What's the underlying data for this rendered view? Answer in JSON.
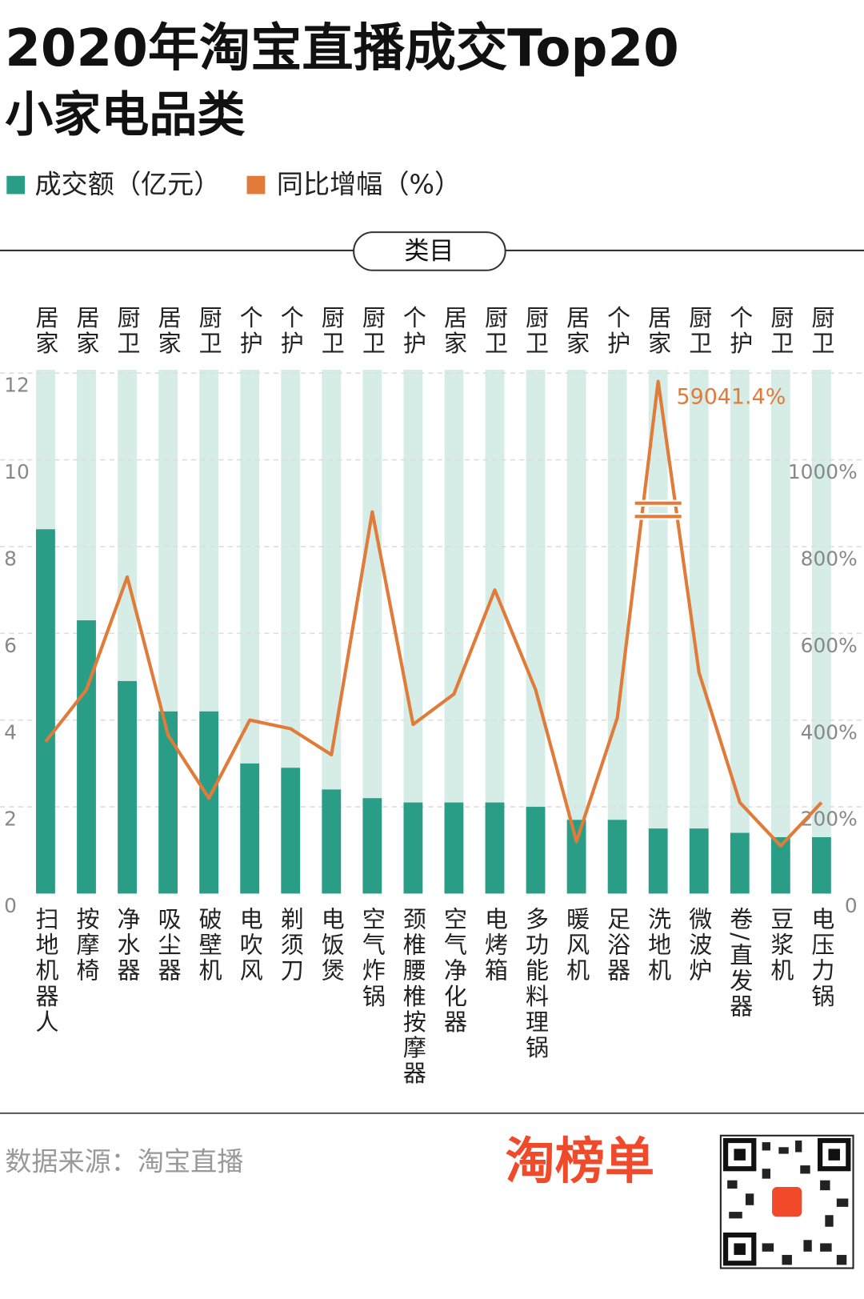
{
  "chart_data": {
    "type": "bar",
    "title": "2020年淘宝直播成交Top20",
    "subtitle": "小家电品类",
    "header": "类目",
    "groups": [
      "居家",
      "居家",
      "厨卫",
      "居家",
      "厨卫",
      "个护",
      "个护",
      "厨卫",
      "厨卫",
      "个护",
      "居家",
      "厨卫",
      "厨卫",
      "居家",
      "个护",
      "居家",
      "厨卫",
      "个护",
      "厨卫",
      "厨卫"
    ],
    "categories": [
      "扫地机器人",
      "按摩椅",
      "净水器",
      "吸尘器",
      "破壁机",
      "电吹风",
      "剃须刀",
      "电饭煲",
      "空气炸锅",
      "颈椎腰椎按摩器",
      "空气净化器",
      "电烤箱",
      "多功能料理锅",
      "暖风机",
      "足浴器",
      "洗地机",
      "微波炉",
      "卷/直发器",
      "豆浆机",
      "电压力锅"
    ],
    "series": [
      {
        "name": "成交额（亿元）",
        "color": "#2a9d87",
        "track_color": "#d6ece6",
        "values": [
          8.4,
          6.3,
          4.9,
          4.2,
          4.2,
          3.0,
          2.9,
          2.4,
          2.2,
          2.1,
          2.1,
          2.1,
          2.0,
          1.7,
          1.7,
          1.5,
          1.5,
          1.4,
          1.3,
          1.3
        ]
      },
      {
        "name": "同比增幅（%）",
        "color": "#e07b39",
        "axis": "y2",
        "values": [
          350,
          470,
          730,
          365,
          220,
          400,
          380,
          320,
          880,
          390,
          460,
          700,
          470,
          120,
          405,
          59041.4,
          510,
          210,
          110,
          210
        ],
        "value_labels": [
          null,
          null,
          null,
          null,
          null,
          null,
          null,
          null,
          null,
          null,
          null,
          null,
          null,
          null,
          null,
          "59041.4%",
          null,
          null,
          null,
          null
        ]
      }
    ],
    "ylim": [
      0,
      12
    ],
    "yticks": [
      0,
      2,
      4,
      6,
      8,
      10,
      12
    ],
    "y2lim": [
      0,
      1200
    ],
    "y2ticks": [
      0,
      {
        "value": 200,
        "label": "200%"
      },
      {
        "value": 400,
        "label": "400%"
      },
      {
        "value": 600,
        "label": "600%"
      },
      {
        "value": 800,
        "label": "800%"
      },
      {
        "value": 1000,
        "label": "1000%"
      }
    ],
    "grid": true,
    "source": "数据来源：淘宝直播",
    "brand": "淘榜单"
  }
}
